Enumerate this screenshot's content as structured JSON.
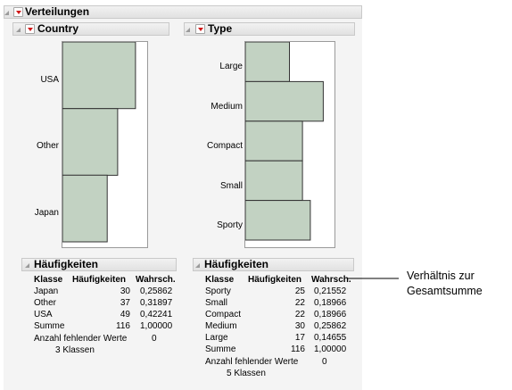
{
  "outline": {
    "title": "Verteilungen"
  },
  "country": {
    "title": "Country",
    "categories": [
      "USA",
      "Other",
      "Japan"
    ],
    "freq": {
      "title": "Häufigkeiten",
      "headers": [
        "Klasse",
        "Häufigkeiten",
        "Wahrsch."
      ],
      "rows": [
        [
          "Japan",
          "30",
          "0,25862"
        ],
        [
          "Other",
          "37",
          "0,31897"
        ],
        [
          "USA",
          "49",
          "0,42241"
        ],
        [
          "Summe",
          "116",
          "1,00000"
        ]
      ],
      "missing_label": "Anzahl fehlender Werte",
      "missing_value": "0",
      "classes": "3  Klassen"
    }
  },
  "type": {
    "title": "Type",
    "categories": [
      "Large",
      "Medium",
      "Compact",
      "Small",
      "Sporty"
    ],
    "freq": {
      "title": "Häufigkeiten",
      "headers": [
        "Klasse",
        "Häufigkeiten",
        "Wahrsch."
      ],
      "rows": [
        [
          "Sporty",
          "25",
          "0,21552"
        ],
        [
          "Small",
          "22",
          "0,18966"
        ],
        [
          "Compact",
          "22",
          "0,18966"
        ],
        [
          "Medium",
          "30",
          "0,25862"
        ],
        [
          "Large",
          "17",
          "0,14655"
        ],
        [
          "Summe",
          "116",
          "1,00000"
        ]
      ],
      "missing_label": "Anzahl fehlender Werte",
      "missing_value": "0",
      "classes": "5  Klassen"
    }
  },
  "callout": {
    "line1": "Verhältnis zur",
    "line2": "Gesamtsumme"
  },
  "chart_data": [
    {
      "type": "bar",
      "orientation": "horizontal",
      "title": "Country",
      "categories": [
        "USA",
        "Other",
        "Japan"
      ],
      "values": [
        49,
        37,
        30
      ]
    },
    {
      "type": "bar",
      "orientation": "horizontal",
      "title": "Type",
      "categories": [
        "Large",
        "Medium",
        "Compact",
        "Small",
        "Sporty"
      ],
      "values": [
        17,
        30,
        22,
        22,
        25
      ]
    }
  ],
  "colors": {
    "bar_fill": "#c2d2c2",
    "bar_stroke": "#333333",
    "menu_arrow": "#d01818"
  }
}
